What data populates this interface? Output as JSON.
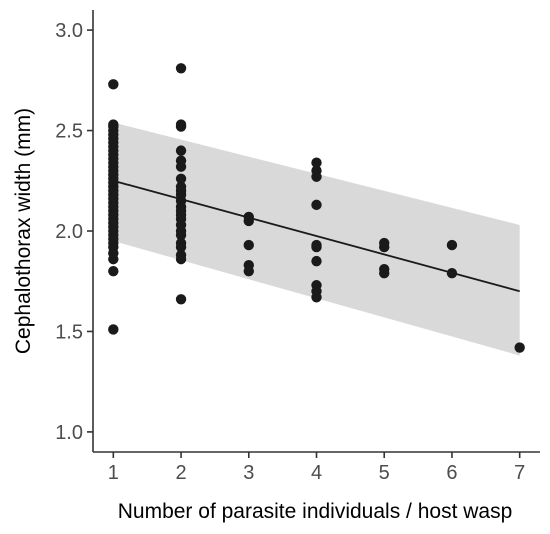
{
  "chart_data": {
    "type": "scatter",
    "title": "",
    "xlabel": "Number of parasite individuals / host wasp",
    "ylabel": "Cephalothorax width (mm)",
    "xlim": [
      0.7,
      7.3
    ],
    "ylim": [
      0.9,
      3.1
    ],
    "x_ticks": [
      1,
      2,
      3,
      4,
      5,
      6,
      7
    ],
    "x_tick_labels": [
      "1",
      "2",
      "3",
      "4",
      "5",
      "6",
      "7"
    ],
    "y_ticks": [
      1.0,
      1.5,
      2.0,
      2.5,
      3.0
    ],
    "y_tick_labels": [
      "1.0",
      "1.5",
      "2.0",
      "2.5",
      "3.0"
    ],
    "grid": false,
    "legend": "none",
    "colors": {
      "points": "#1a1a1a",
      "line": "#1a1a1a",
      "band": "#d9d9d9",
      "axis": "#333333"
    },
    "points": [
      [
        1,
        2.73
      ],
      [
        1,
        2.53
      ],
      [
        1,
        2.52
      ],
      [
        1,
        2.5
      ],
      [
        1,
        2.48
      ],
      [
        1,
        2.46
      ],
      [
        1,
        2.44
      ],
      [
        1,
        2.42
      ],
      [
        1,
        2.4
      ],
      [
        1,
        2.38
      ],
      [
        1,
        2.36
      ],
      [
        1,
        2.34
      ],
      [
        1,
        2.32
      ],
      [
        1,
        2.3
      ],
      [
        1,
        2.28
      ],
      [
        1,
        2.26
      ],
      [
        1,
        2.24
      ],
      [
        1,
        2.22
      ],
      [
        1,
        2.2
      ],
      [
        1,
        2.18
      ],
      [
        1,
        2.16
      ],
      [
        1,
        2.14
      ],
      [
        1,
        2.12
      ],
      [
        1,
        2.1
      ],
      [
        1,
        2.08
      ],
      [
        1,
        2.06
      ],
      [
        1,
        2.04
      ],
      [
        1,
        2.02
      ],
      [
        1,
        2.0
      ],
      [
        1,
        1.98
      ],
      [
        1,
        1.96
      ],
      [
        1,
        1.94
      ],
      [
        1,
        1.92
      ],
      [
        1,
        1.89
      ],
      [
        1,
        1.86
      ],
      [
        1,
        1.8
      ],
      [
        1,
        1.51
      ],
      [
        2,
        2.81
      ],
      [
        2,
        2.53
      ],
      [
        2,
        2.52
      ],
      [
        2,
        2.4
      ],
      [
        2,
        2.35
      ],
      [
        2,
        2.32
      ],
      [
        2,
        2.26
      ],
      [
        2,
        2.22
      ],
      [
        2,
        2.2
      ],
      [
        2,
        2.18
      ],
      [
        2,
        2.15
      ],
      [
        2,
        2.12
      ],
      [
        2,
        2.1
      ],
      [
        2,
        2.08
      ],
      [
        2,
        2.06
      ],
      [
        2,
        2.03
      ],
      [
        2,
        2.0
      ],
      [
        2,
        1.98
      ],
      [
        2,
        1.94
      ],
      [
        2,
        1.92
      ],
      [
        2,
        1.88
      ],
      [
        2,
        1.86
      ],
      [
        2,
        1.66
      ],
      [
        3,
        2.07
      ],
      [
        3,
        2.05
      ],
      [
        3,
        1.93
      ],
      [
        3,
        1.83
      ],
      [
        3,
        1.8
      ],
      [
        4,
        2.34
      ],
      [
        4,
        2.3
      ],
      [
        4,
        2.27
      ],
      [
        4,
        2.13
      ],
      [
        4,
        1.93
      ],
      [
        4,
        1.92
      ],
      [
        4,
        1.85
      ],
      [
        4,
        1.73
      ],
      [
        4,
        1.7
      ],
      [
        4,
        1.67
      ],
      [
        5,
        1.94
      ],
      [
        5,
        1.92
      ],
      [
        5,
        1.81
      ],
      [
        5,
        1.79
      ],
      [
        6,
        1.93
      ],
      [
        6,
        1.79
      ],
      [
        7,
        1.42
      ]
    ],
    "fit_line": {
      "x": [
        1,
        7
      ],
      "y": [
        2.25,
        1.7
      ]
    },
    "confidence_band": {
      "x": [
        1,
        7
      ],
      "upper": [
        2.54,
        2.03
      ],
      "lower": [
        1.95,
        1.38
      ]
    }
  }
}
